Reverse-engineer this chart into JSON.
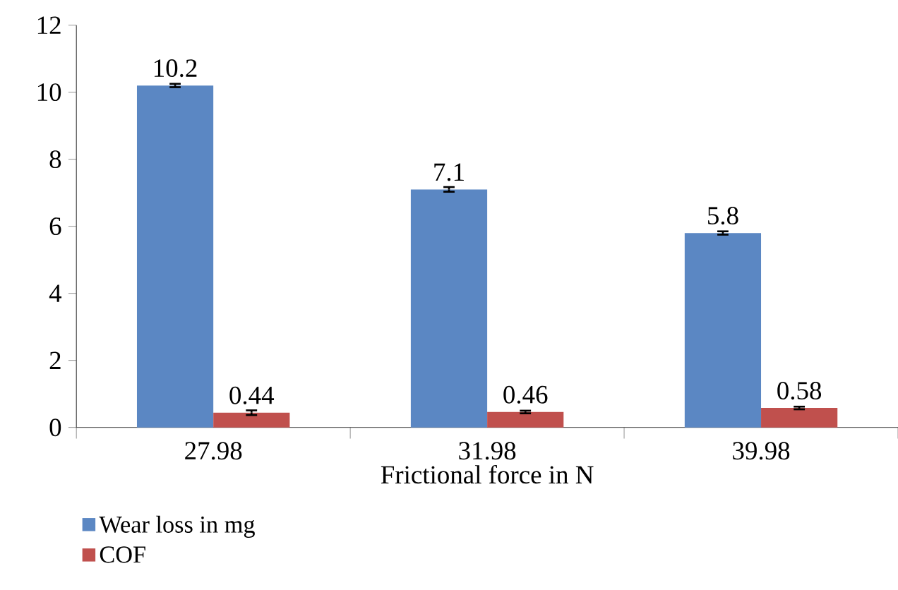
{
  "chart_data": {
    "type": "bar",
    "xlabel": "Frictional force in N",
    "categories": [
      "27.98",
      "31.98",
      "39.98"
    ],
    "series": [
      {
        "name": "Wear loss in mg",
        "color": "#5b87c3",
        "values": [
          10.2,
          7.1,
          5.8
        ],
        "errors": [
          0.05,
          0.07,
          0.05
        ]
      },
      {
        "name": "COF",
        "color": "#c0504d",
        "values": [
          0.44,
          0.46,
          0.58
        ],
        "errors": [
          0.07,
          0.04,
          0.04
        ]
      }
    ],
    "ylim": [
      0,
      12
    ],
    "yticks": [
      0,
      2,
      4,
      6,
      8,
      10,
      12
    ],
    "data_labels": true,
    "grid": false,
    "legend": "bottom left"
  }
}
